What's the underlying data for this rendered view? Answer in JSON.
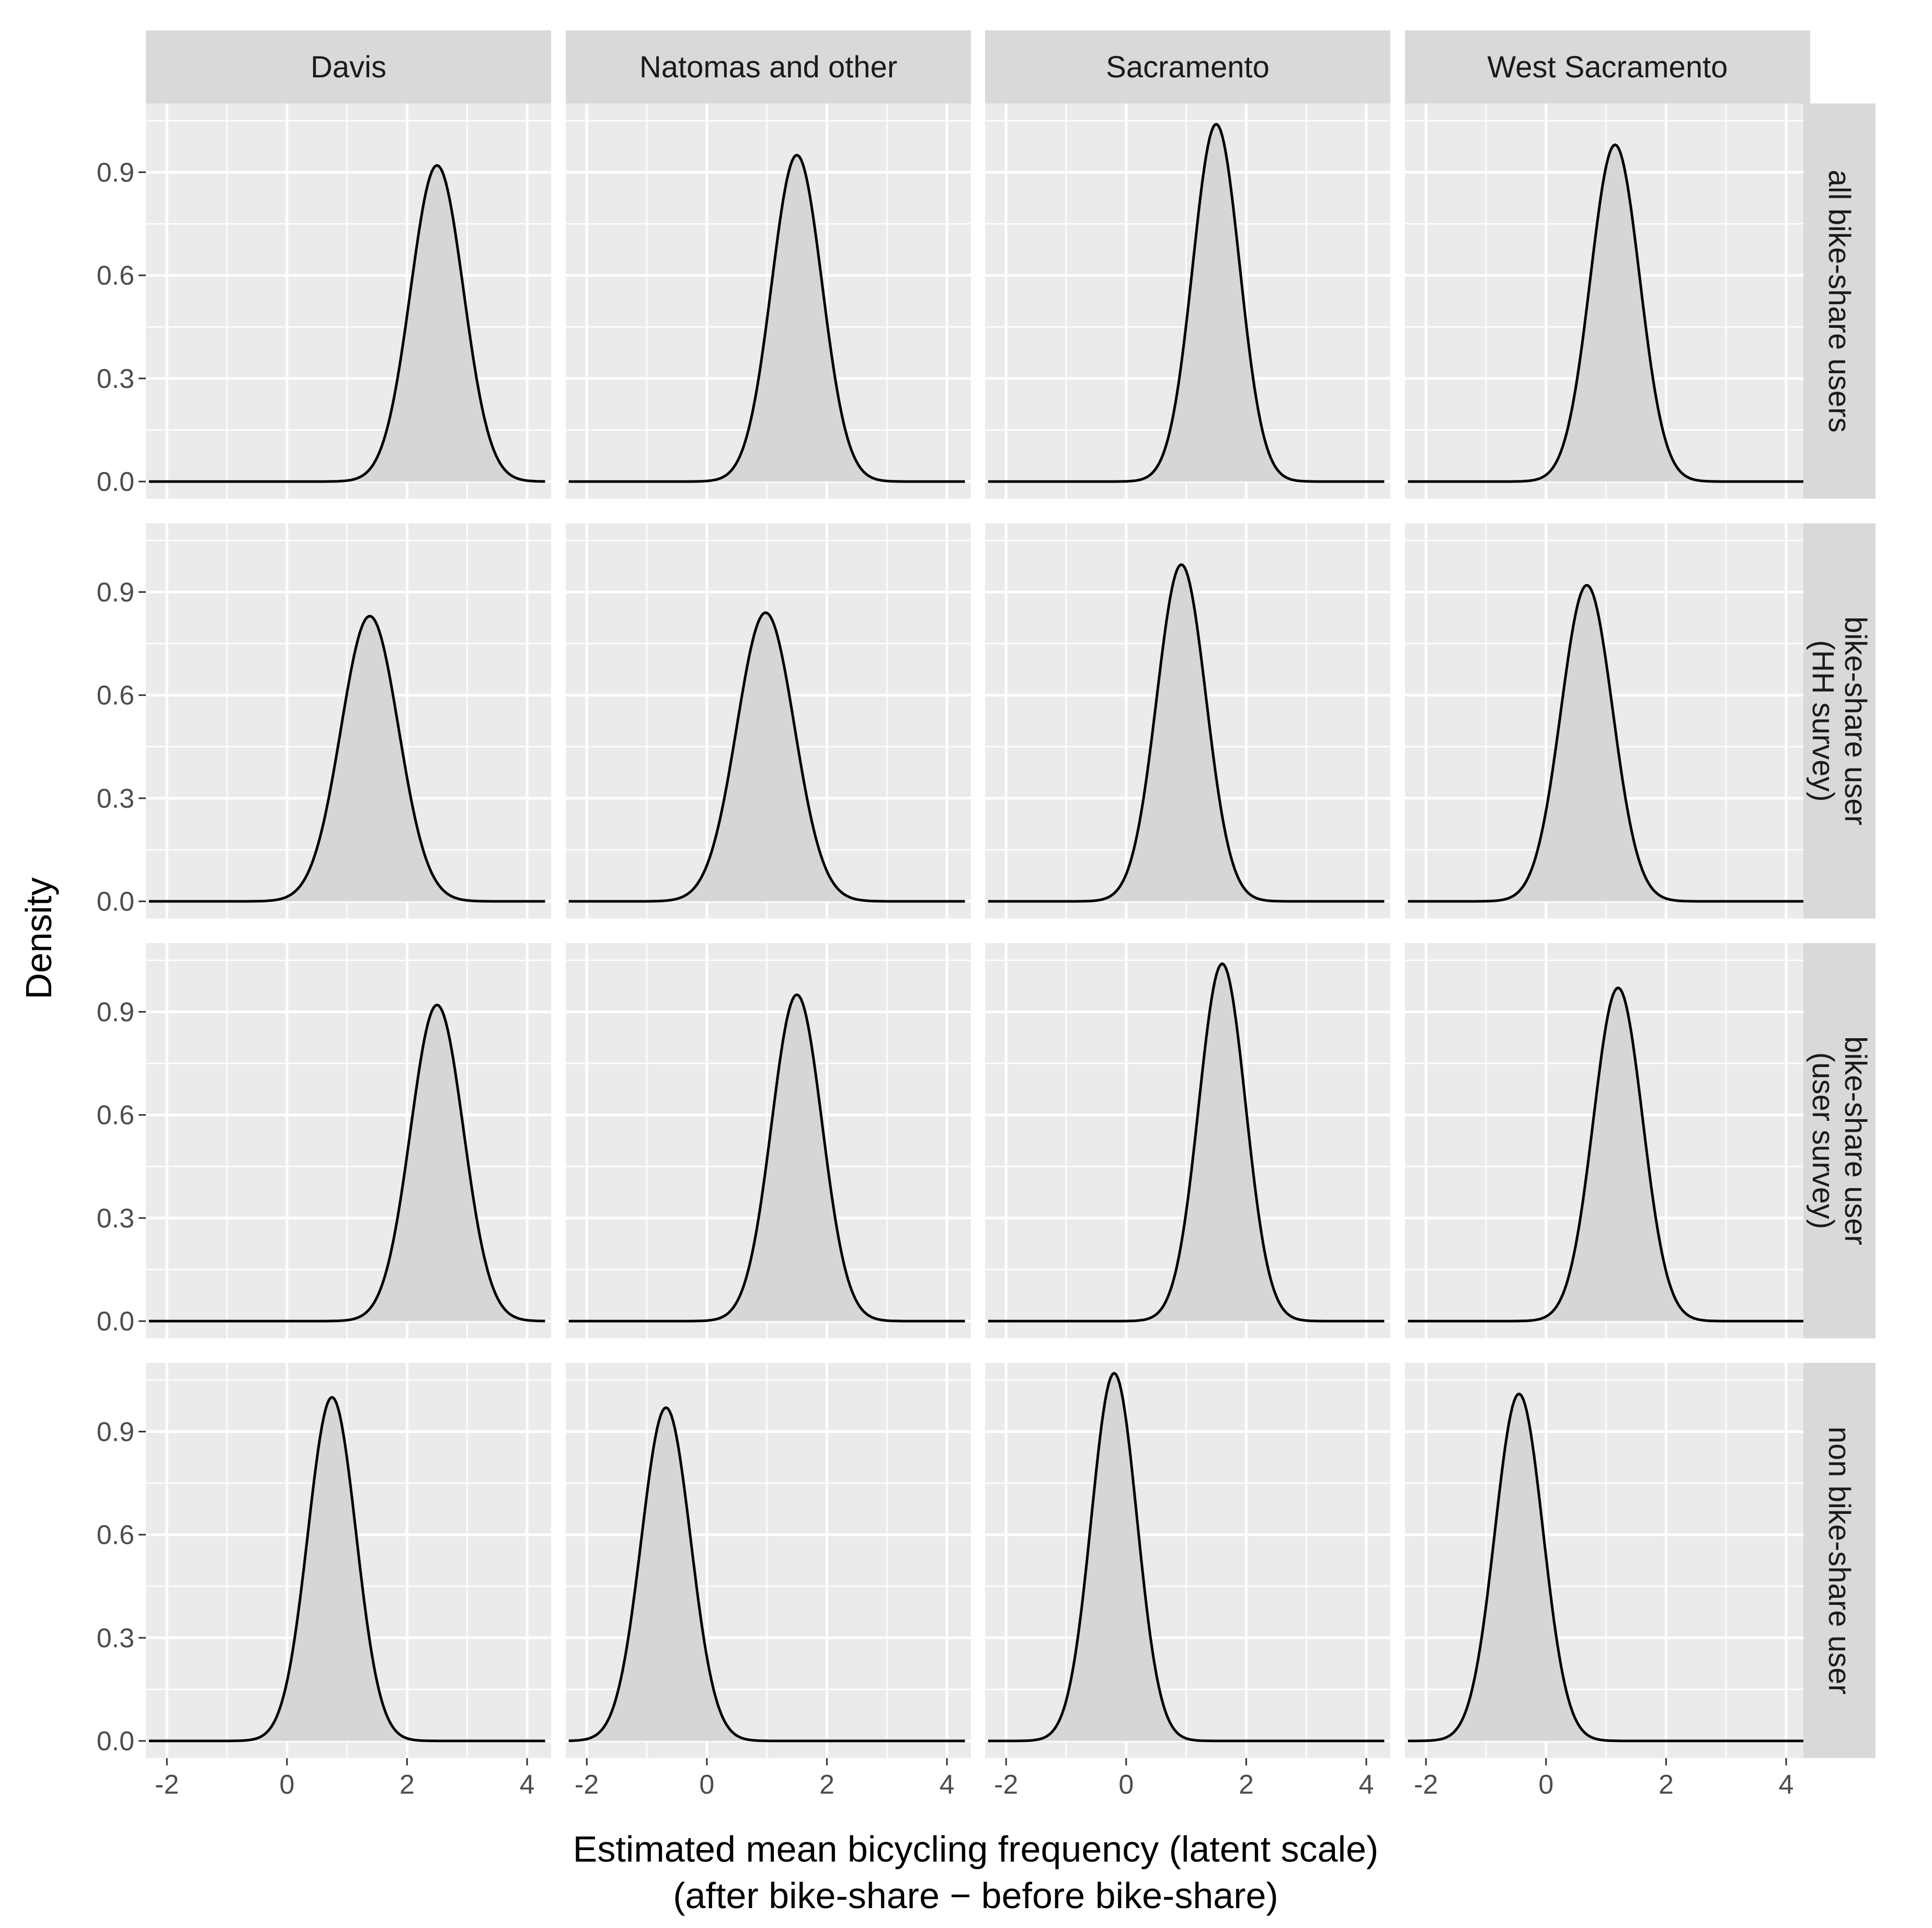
{
  "chart_data": {
    "type": "area",
    "subtype": "faceted density plot (ggplot2 facet_grid)",
    "xlabel": "Estimated mean bicycling frequency (latent scale)",
    "xlabel_line2": "(after bike-share − before bike-share)",
    "ylabel": "Density",
    "xlim": [
      -2.35,
      4.4
    ],
    "ylim": [
      -0.05,
      1.1
    ],
    "x_ticks": [
      -2,
      0,
      2,
      4
    ],
    "x_tick_labels": [
      "-2",
      "0",
      "2",
      "4"
    ],
    "y_ticks": [
      0.0,
      0.3,
      0.6,
      0.9
    ],
    "y_tick_labels": [
      "0.0",
      "0.3",
      "0.6",
      "0.9"
    ],
    "columns": [
      "Davis",
      "Natomas and other",
      "Sacramento",
      "West Sacramento"
    ],
    "rows": [
      {
        "label_lines": [
          "all bike-share users"
        ]
      },
      {
        "label_lines": [
          "bike-share user",
          "(HH survey)"
        ]
      },
      {
        "label_lines": [
          "bike-share user",
          "(user survey)"
        ]
      },
      {
        "label_lines": [
          "non bike-share user"
        ]
      }
    ],
    "x_range": [
      -2.3,
      4.3
    ],
    "curves": [
      [
        {
          "mean": 2.5,
          "sd": 0.44,
          "peak": 0.92
        },
        {
          "mean": 1.5,
          "sd": 0.42,
          "peak": 0.95
        },
        {
          "mean": 1.5,
          "sd": 0.39,
          "peak": 1.04
        },
        {
          "mean": 1.15,
          "sd": 0.41,
          "peak": 0.98
        }
      ],
      [
        {
          "mean": 1.38,
          "sd": 0.48,
          "peak": 0.83
        },
        {
          "mean": 0.98,
          "sd": 0.48,
          "peak": 0.84
        },
        {
          "mean": 0.92,
          "sd": 0.41,
          "peak": 0.98
        },
        {
          "mean": 0.68,
          "sd": 0.43,
          "peak": 0.92
        }
      ],
      [
        {
          "mean": 2.5,
          "sd": 0.44,
          "peak": 0.92
        },
        {
          "mean": 1.5,
          "sd": 0.42,
          "peak": 0.95
        },
        {
          "mean": 1.6,
          "sd": 0.39,
          "peak": 1.04
        },
        {
          "mean": 1.2,
          "sd": 0.41,
          "peak": 0.97
        }
      ],
      [
        {
          "mean": 0.75,
          "sd": 0.4,
          "peak": 1.0
        },
        {
          "mean": -0.68,
          "sd": 0.41,
          "peak": 0.97
        },
        {
          "mean": -0.2,
          "sd": 0.38,
          "peak": 1.07
        },
        {
          "mean": -0.45,
          "sd": 0.4,
          "peak": 1.01
        }
      ]
    ]
  }
}
